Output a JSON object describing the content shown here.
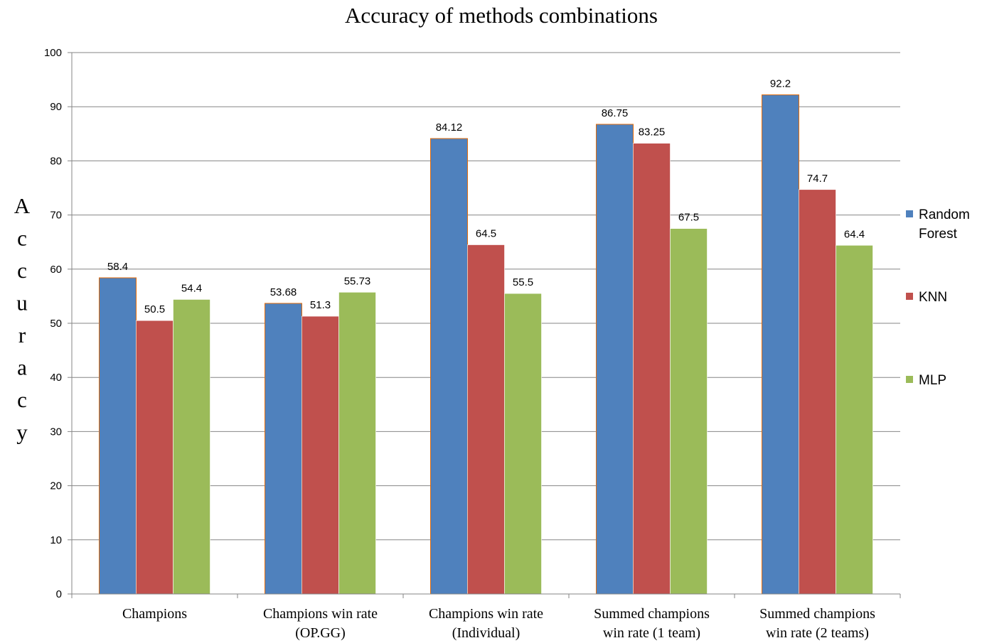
{
  "chart_data": {
    "type": "bar",
    "title": "Accuracy of methods combinations",
    "ylabel": "Accuracy",
    "xlabel": "",
    "ylim": [
      0,
      100
    ],
    "yticks": [
      0,
      10,
      20,
      30,
      40,
      50,
      60,
      70,
      80,
      90,
      100
    ],
    "grid": true,
    "legend_position": "right",
    "categories": [
      [
        "Champions"
      ],
      [
        "Champions win rate",
        "(OP.GG)"
      ],
      [
        "Champions win rate",
        "(Individual)"
      ],
      [
        "Summed champions",
        "win rate (1 team)"
      ],
      [
        "Summed champions",
        "win rate (2 teams)"
      ]
    ],
    "series": [
      {
        "name": [
          "Random",
          "Forest"
        ],
        "color": "#4F81BD",
        "values": [
          58.4,
          53.68,
          84.12,
          86.75,
          92.2
        ],
        "labels": [
          "58.4",
          "53.68",
          "84.12",
          "86.75",
          "92.2"
        ]
      },
      {
        "name": [
          "KNN"
        ],
        "color": "#C0504D",
        "values": [
          50.5,
          51.3,
          64.5,
          83.25,
          74.7
        ],
        "labels": [
          "50.5",
          "51.3",
          "64.5",
          "83.25",
          "74.7"
        ]
      },
      {
        "name": [
          "MLP"
        ],
        "color": "#9BBB59",
        "values": [
          54.4,
          55.73,
          55.5,
          67.5,
          64.4
        ],
        "labels": [
          "54.4",
          "55.73",
          "55.5",
          "67.5",
          "64.4"
        ]
      }
    ]
  }
}
